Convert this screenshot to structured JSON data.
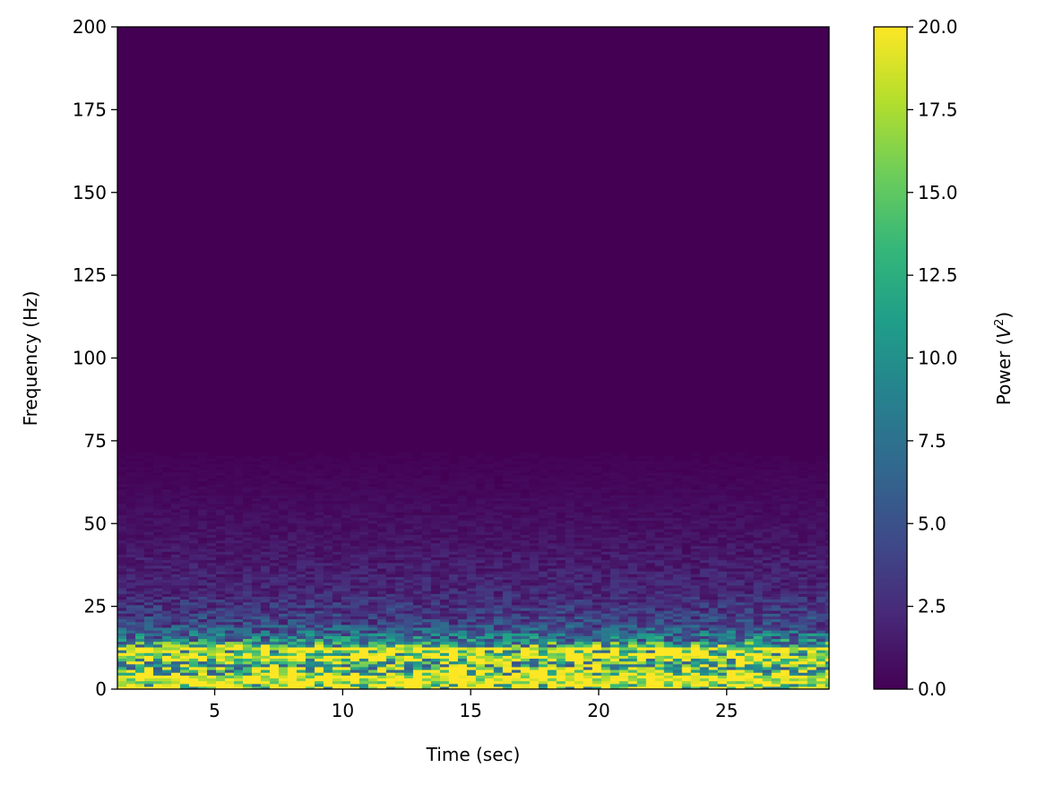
{
  "chart_data": {
    "type": "heatmap",
    "title": "",
    "xlabel": "Time (sec)",
    "ylabel": "Frequency (Hz)",
    "xlim": [
      1.2,
      29.0
    ],
    "ylim": [
      0,
      200
    ],
    "xticks": [
      5,
      10,
      15,
      20,
      25
    ],
    "yticks": [
      0,
      25,
      50,
      75,
      100,
      125,
      150,
      175,
      200
    ],
    "colorbar": {
      "label": "Power (V²)",
      "label_prefix": "Power (",
      "label_var": "V",
      "label_exp": "2",
      "label_suffix": ")",
      "min": 0.0,
      "max": 20.0,
      "ticks": [
        "0.0",
        "2.5",
        "5.0",
        "7.5",
        "10.0",
        "12.5",
        "15.0",
        "17.5",
        "20.0"
      ],
      "colormap": "viridis"
    },
    "grid": false,
    "bands": [
      {
        "freq": 2.5,
        "power": 20.0
      },
      {
        "freq": 5.0,
        "power": 16.0
      },
      {
        "freq": 7.5,
        "power": 12.0
      },
      {
        "freq": 10.0,
        "power": 20.0
      },
      {
        "freq": 15.0,
        "power": 8.0
      },
      {
        "freq": 20.0,
        "power": 4.0
      },
      {
        "freq": 30.0,
        "power": 2.0
      },
      {
        "freq": 45.0,
        "power": 1.0
      },
      {
        "freq": 60.0,
        "power": 0.4
      },
      {
        "freq": 75.0,
        "power": 0.0
      },
      {
        "freq": 200.0,
        "power": 0.0
      }
    ]
  }
}
